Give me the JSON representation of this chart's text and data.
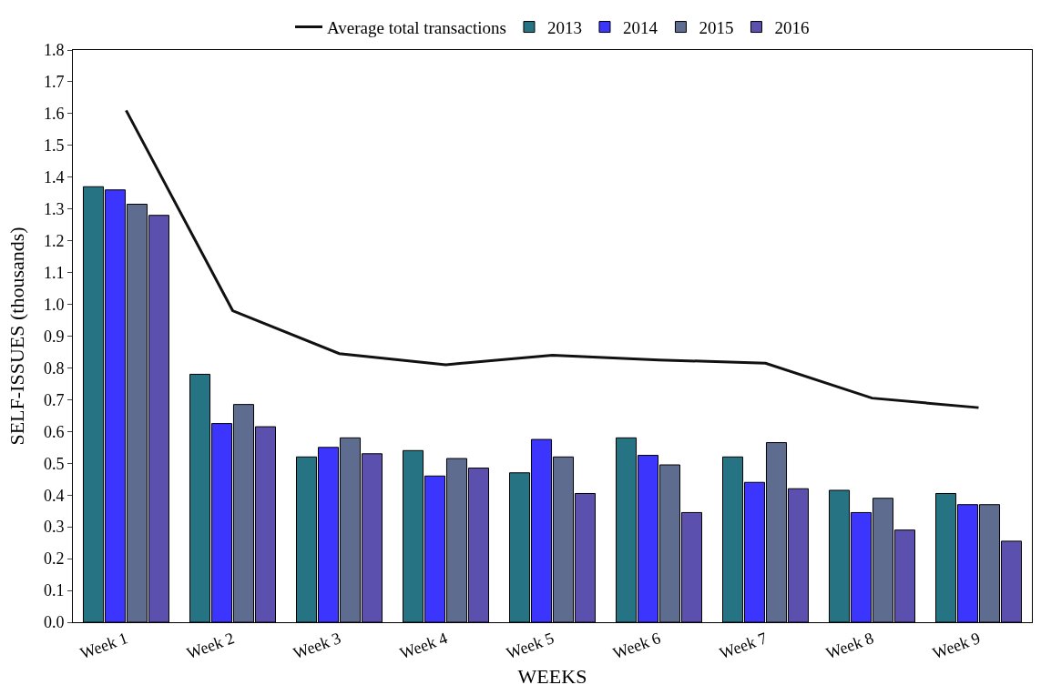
{
  "chart_data": {
    "type": "bar",
    "xlabel": "WEEKS",
    "ylabel": "SELF-ISSUES (thousands)",
    "categories": [
      "Week 1",
      "Week 2",
      "Week 3",
      "Week 4",
      "Week 5",
      "Week 6",
      "Week 7",
      "Week 8",
      "Week 9"
    ],
    "series": [
      {
        "name": "Average total transactions",
        "type": "line",
        "color": "#111111",
        "values": [
          1.61,
          0.98,
          0.845,
          0.81,
          0.84,
          0.825,
          0.815,
          0.705,
          0.675
        ]
      },
      {
        "name": "2013",
        "color": "#267483",
        "values": [
          1.37,
          0.78,
          0.52,
          0.54,
          0.47,
          0.58,
          0.52,
          0.415,
          0.405
        ]
      },
      {
        "name": "2014",
        "color": "#3c35fe",
        "values": [
          1.36,
          0.625,
          0.55,
          0.46,
          0.575,
          0.525,
          0.44,
          0.345,
          0.37
        ]
      },
      {
        "name": "2015",
        "color": "#5e6c8f",
        "values": [
          1.315,
          0.685,
          0.58,
          0.515,
          0.52,
          0.495,
          0.565,
          0.39,
          0.37
        ]
      },
      {
        "name": "2016",
        "color": "#5b50ad",
        "values": [
          1.28,
          0.615,
          0.53,
          0.485,
          0.405,
          0.345,
          0.42,
          0.29,
          0.255
        ]
      }
    ],
    "ylim": [
      0,
      1.8
    ],
    "yticks": [
      {
        "value": 0,
        "label": "0.0"
      },
      0.1,
      0.2,
      0.3,
      0.4,
      0.5,
      0.6,
      0.7,
      0.8,
      0.9,
      {
        "value": 1,
        "label": "1.0"
      },
      1.1,
      1.2,
      1.3,
      1.4,
      1.5,
      1.6,
      1.7,
      1.8
    ],
    "legend": "top",
    "line_style": "solid",
    "marker": "none"
  }
}
